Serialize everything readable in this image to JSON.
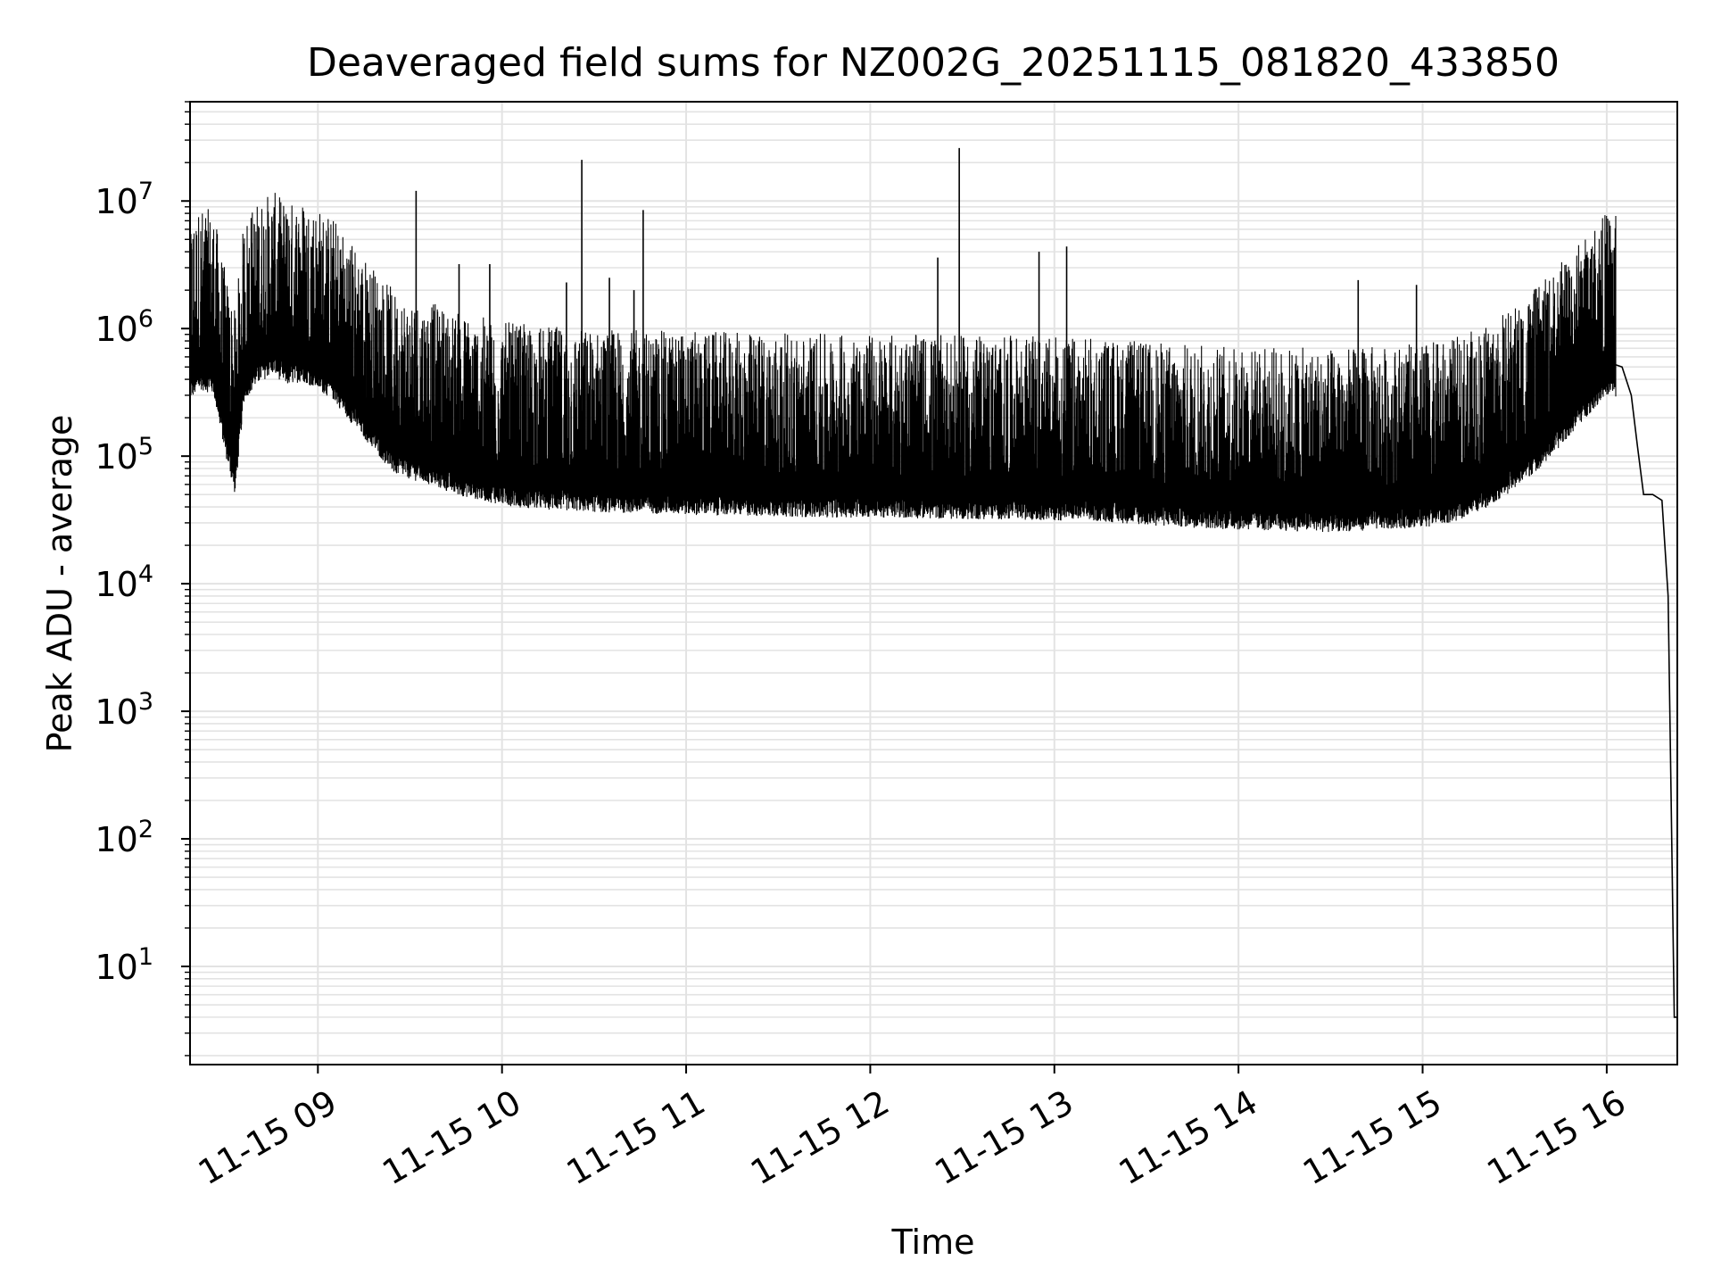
{
  "chart_data": {
    "type": "line",
    "title": "Deaveraged field sums for NZ002G_20251115_081820_433850",
    "xlabel": "Time",
    "ylabel": "Peak ADU - average",
    "y_scale": "log",
    "ylim": [
      1.7,
      60000000
    ],
    "xlim": [
      "2025-11-15 08:18:20",
      "2025-11-15 16:23:00"
    ],
    "grid": true,
    "x_tick_labels": [
      "11-15 09",
      "11-15 10",
      "11-15 11",
      "11-15 12",
      "11-15 13",
      "11-15 14",
      "11-15 15",
      "11-15 16"
    ],
    "y_tick_labels": [
      {
        "base": "10",
        "exp": "1"
      },
      {
        "base": "10",
        "exp": "2"
      },
      {
        "base": "10",
        "exp": "3"
      },
      {
        "base": "10",
        "exp": "4"
      },
      {
        "base": "10",
        "exp": "5"
      },
      {
        "base": "10",
        "exp": "6"
      },
      {
        "base": "10",
        "exp": "7"
      }
    ],
    "line_color": "#000000",
    "series": [
      {
        "x": [
          "2025-11-15 08:18:20",
          "2025-11-15 08:22",
          "2025-11-15 08:26",
          "2025-11-15 08:30",
          "2025-11-15 08:33",
          "2025-11-15 08:36",
          "2025-11-15 08:40",
          "2025-11-15 08:45",
          "2025-11-15 08:50",
          "2025-11-15 08:55",
          "2025-11-15 09:00",
          "2025-11-15 09:05",
          "2025-11-15 09:10",
          "2025-11-15 09:15",
          "2025-11-15 09:20",
          "2025-11-15 09:25",
          "2025-11-15 09:30",
          "2025-11-15 09:35",
          "2025-11-15 09:40",
          "2025-11-15 09:45",
          "2025-11-15 09:50",
          "2025-11-15 09:55",
          "2025-11-15 10:00",
          "2025-11-15 10:10",
          "2025-11-15 10:20",
          "2025-11-15 10:30",
          "2025-11-15 10:40",
          "2025-11-15 10:50",
          "2025-11-15 11:00",
          "2025-11-15 11:15",
          "2025-11-15 11:30",
          "2025-11-15 11:45",
          "2025-11-15 12:00",
          "2025-11-15 12:15",
          "2025-11-15 12:30",
          "2025-11-15 12:45",
          "2025-11-15 13:00",
          "2025-11-15 13:15",
          "2025-11-15 13:30",
          "2025-11-15 13:45",
          "2025-11-15 14:00",
          "2025-11-15 14:15",
          "2025-11-15 14:30",
          "2025-11-15 14:45",
          "2025-11-15 15:00",
          "2025-11-15 15:10",
          "2025-11-15 15:20",
          "2025-11-15 15:30",
          "2025-11-15 15:40",
          "2025-11-15 15:50",
          "2025-11-15 16:00",
          "2025-11-15 16:05",
          "2025-11-15 16:08",
          "2025-11-15 16:10",
          "2025-11-15 16:12",
          "2025-11-15 16:15",
          "2025-11-15 16:18",
          "2025-11-15 16:20",
          "2025-11-15 16:21",
          "2025-11-15 16:22",
          "2025-11-15 16:23"
        ],
        "y": [
          500000,
          600000,
          550000,
          180000,
          90000,
          500000,
          650000,
          800000,
          650000,
          700000,
          600000,
          500000,
          350000,
          250000,
          180000,
          130000,
          120000,
          110000,
          100000,
          90000,
          85000,
          80000,
          75000,
          70000,
          68000,
          66000,
          65000,
          64000,
          63000,
          62000,
          61000,
          60000,
          60000,
          59000,
          58000,
          58000,
          57000,
          56000,
          52000,
          50000,
          48000,
          47000,
          46000,
          48000,
          50000,
          55000,
          70000,
          100000,
          160000,
          300000,
          550000,
          500000,
          300000,
          120000,
          50000,
          50000,
          45000,
          8000,
          200,
          4,
          4
        ]
      }
    ],
    "spikes": [
      {
        "x": "2025-11-15 08:46",
        "y": 3200000
      },
      {
        "x": "2025-11-15 08:49",
        "y": 4800000
      },
      {
        "x": "2025-11-15 08:50",
        "y": 7200000
      },
      {
        "x": "2025-11-15 09:00",
        "y": 2800000
      },
      {
        "x": "2025-11-15 09:05",
        "y": 2800000
      },
      {
        "x": "2025-11-15 09:08",
        "y": 2800000
      },
      {
        "x": "2025-11-15 09:16",
        "y": 2400000
      },
      {
        "x": "2025-11-15 09:32",
        "y": 12000000
      },
      {
        "x": "2025-11-15 09:46",
        "y": 3200000
      },
      {
        "x": "2025-11-15 09:56",
        "y": 3200000
      },
      {
        "x": "2025-11-15 10:21",
        "y": 2300000
      },
      {
        "x": "2025-11-15 10:26",
        "y": 21000000
      },
      {
        "x": "2025-11-15 10:35",
        "y": 2500000
      },
      {
        "x": "2025-11-15 10:43",
        "y": 2000000
      },
      {
        "x": "2025-11-15 10:46",
        "y": 8500000
      },
      {
        "x": "2025-11-15 12:22",
        "y": 3600000
      },
      {
        "x": "2025-11-15 12:29",
        "y": 26000000
      },
      {
        "x": "2025-11-15 12:55",
        "y": 4000000
      },
      {
        "x": "2025-11-15 13:04",
        "y": 4400000
      },
      {
        "x": "2025-11-15 14:39",
        "y": 2400000
      },
      {
        "x": "2025-11-15 14:58",
        "y": 2200000
      },
      {
        "x": "2025-11-15 15:52",
        "y": 2500000
      },
      {
        "x": "2025-11-15 15:58",
        "y": 2400000
      }
    ]
  }
}
